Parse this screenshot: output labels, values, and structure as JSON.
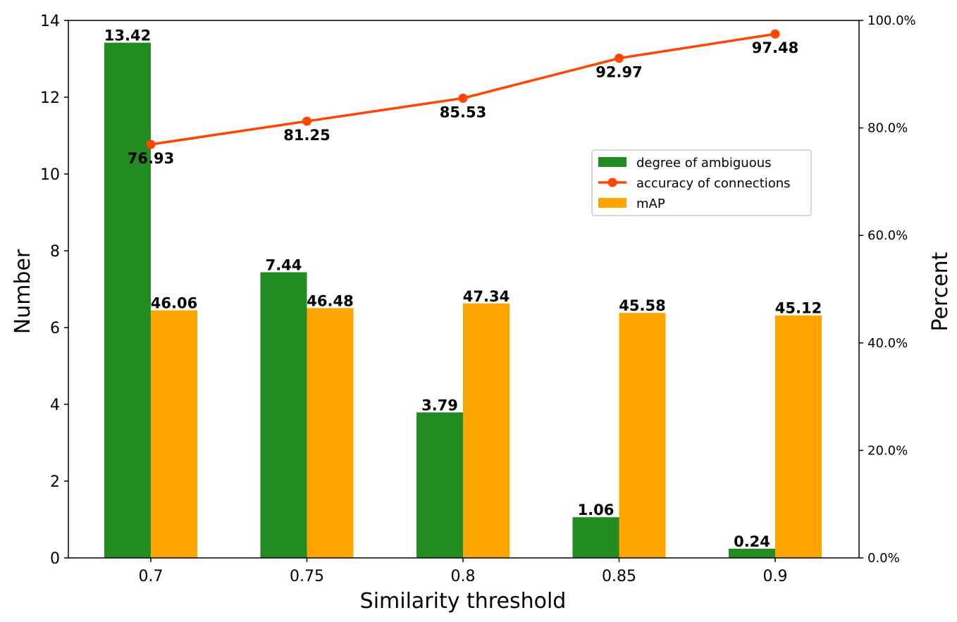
{
  "chart_data": {
    "type": "bar",
    "categories": [
      "0.7",
      "0.75",
      "0.8",
      "0.85",
      "0.9"
    ],
    "xlabel": "Similarity threshold",
    "ylabel": "Number",
    "ylabel_right": "Percent",
    "ylim": [
      0,
      14
    ],
    "ylim_right": [
      0,
      100
    ],
    "yticks": [
      "0",
      "2",
      "4",
      "6",
      "8",
      "10",
      "12",
      "14"
    ],
    "yticks_right": [
      "0.0%",
      "20.0%",
      "40.0%",
      "60.0%",
      "80.0%",
      "100.0%"
    ],
    "series": [
      {
        "name": "degree of ambiguous",
        "kind": "bar",
        "axis": "left",
        "color": "#228b22",
        "values": [
          13.42,
          7.44,
          3.79,
          1.06,
          0.24
        ],
        "labels": [
          "13.42",
          "7.44",
          "3.79",
          "1.06",
          "0.24"
        ]
      },
      {
        "name": "accuracy of connections",
        "kind": "line",
        "axis": "right",
        "color": "#ff4500",
        "values": [
          76.93,
          81.25,
          85.53,
          92.97,
          97.48
        ],
        "labels": [
          "76.93",
          "81.25",
          "85.53",
          "92.97",
          "97.48"
        ]
      },
      {
        "name": "mAP",
        "kind": "bar",
        "axis": "right",
        "color": "#ffa500",
        "values": [
          46.06,
          46.48,
          47.34,
          45.58,
          45.12
        ],
        "labels": [
          "46.06",
          "46.48",
          "47.34",
          "45.58",
          "45.12"
        ]
      }
    ],
    "legend_position": "center-right"
  }
}
